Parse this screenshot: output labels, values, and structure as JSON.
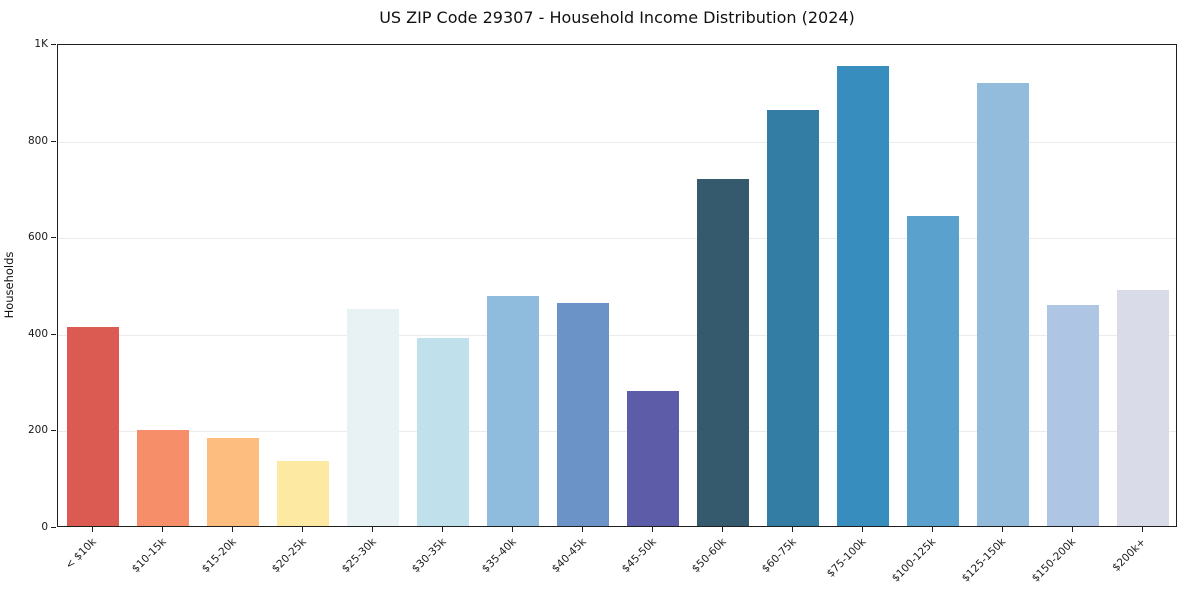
{
  "chart_data": {
    "type": "bar",
    "title": "US ZIP Code 29307 - Household Income Distribution (2024)",
    "xlabel": "",
    "ylabel": "Households",
    "ylim": [
      0,
      1000
    ],
    "grid": true,
    "legend": "none",
    "yticks": [
      {
        "value": 0,
        "label": "0"
      },
      {
        "value": 200,
        "label": "200"
      },
      {
        "value": 400,
        "label": "400"
      },
      {
        "value": 600,
        "label": "600"
      },
      {
        "value": 800,
        "label": "800"
      },
      {
        "value": 1000,
        "label": "1K"
      }
    ],
    "categories": [
      "< $10k",
      "$10-15k",
      "$15-20k",
      "$20-25k",
      "$25-30k",
      "$30-35k",
      "$35-40k",
      "$40-45k",
      "$45-50k",
      "$50-60k",
      "$60-75k",
      "$75-100k",
      "$100-125k",
      "$125-150k",
      "$150-200k",
      "$200k+"
    ],
    "values": [
      412,
      198,
      183,
      135,
      450,
      389,
      476,
      462,
      279,
      718,
      862,
      952,
      641,
      917,
      457,
      488
    ],
    "bar_colors": [
      "#db5b52",
      "#f78e6a",
      "#fcbd7e",
      "#fee9a2",
      "#e8f2f5",
      "#c0e0ec",
      "#8fbcdc",
      "#6b93c8",
      "#5c5ca8",
      "#35596d",
      "#337ca4",
      "#368dbe",
      "#5aa2cd",
      "#92bbdc",
      "#aec6e3",
      "#d9dbe8"
    ],
    "colors": {
      "background": "#ffffff",
      "spine": "#1f1f1f",
      "gridline": "#ebebeb",
      "text": "#1a1a1a"
    }
  }
}
